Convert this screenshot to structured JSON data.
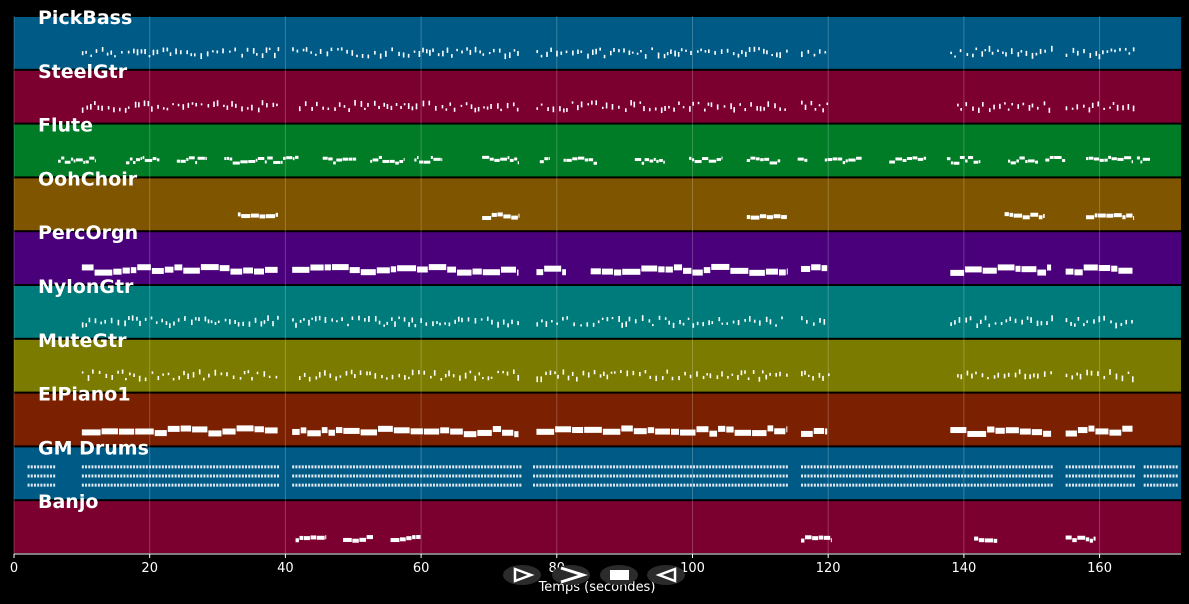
{
  "chart_data": {
    "type": "piano-roll",
    "xlabel": "Temps (secondes)",
    "xlim": [
      0,
      172
    ],
    "xticks": [
      0,
      20,
      40,
      60,
      80,
      100,
      120,
      140,
      160
    ],
    "grid": true,
    "background": "#000000",
    "note_color": "#ffffff",
    "tracks": [
      {
        "name": "PickBass",
        "color": "#005a86",
        "style": "sparse",
        "segments": [
          [
            10,
            39
          ],
          [
            41,
            74.5
          ],
          [
            77,
            114
          ],
          [
            116,
            120
          ],
          [
            138,
            153
          ],
          [
            155,
            165
          ]
        ]
      },
      {
        "name": "SteelGtr",
        "color": "#7b0030",
        "style": "sparse",
        "segments": [
          [
            10,
            39
          ],
          [
            42,
            74.5
          ],
          [
            77,
            114
          ],
          [
            116,
            120
          ],
          [
            139,
            153
          ],
          [
            155,
            165
          ]
        ]
      },
      {
        "name": "Flute",
        "color": "#007b26",
        "style": "phrases",
        "segments": [
          [
            6.5,
            12
          ],
          [
            16.5,
            21.5
          ],
          [
            24,
            28.5
          ],
          [
            31,
            42
          ],
          [
            45.5,
            50.5
          ],
          [
            52.5,
            57.5
          ],
          [
            59,
            63
          ],
          [
            69,
            74.5
          ],
          [
            77.5,
            79
          ],
          [
            81,
            86
          ],
          [
            91.5,
            96
          ],
          [
            99.5,
            104.5
          ],
          [
            108,
            113
          ],
          [
            115.5,
            117
          ],
          [
            119.5,
            125
          ],
          [
            129,
            134.5
          ],
          [
            137.5,
            142.5
          ],
          [
            146.5,
            151
          ],
          [
            152,
            155
          ],
          [
            158,
            165
          ],
          [
            165.5,
            167.5
          ]
        ]
      },
      {
        "name": "OohChoir",
        "color": "#7f5500",
        "style": "blocks",
        "segments": [
          [
            33,
            39
          ],
          [
            69,
            74.5
          ],
          [
            108,
            114
          ],
          [
            146,
            152
          ],
          [
            158,
            165
          ]
        ]
      },
      {
        "name": "PercOrgn",
        "color": "#4a007b",
        "style": "solid",
        "segments": [
          [
            10,
            39
          ],
          [
            41,
            74.5
          ],
          [
            77,
            81.5
          ],
          [
            85,
            114
          ],
          [
            116,
            120
          ],
          [
            138,
            153
          ],
          [
            155,
            165
          ]
        ]
      },
      {
        "name": "NylonGtr",
        "color": "#007b7b",
        "style": "sparse",
        "segments": [
          [
            10,
            39
          ],
          [
            41,
            74.5
          ],
          [
            77,
            114
          ],
          [
            116,
            120
          ],
          [
            138,
            153
          ],
          [
            155,
            165
          ]
        ]
      },
      {
        "name": "MuteGtr",
        "color": "#7b7b00",
        "style": "sparse",
        "segments": [
          [
            10,
            39
          ],
          [
            42,
            74.5
          ],
          [
            77,
            114
          ],
          [
            116,
            120
          ],
          [
            139,
            153
          ],
          [
            155,
            165
          ]
        ]
      },
      {
        "name": "ElPiano1",
        "color": "#7b2000",
        "style": "solid",
        "segments": [
          [
            10,
            39
          ],
          [
            41,
            74.5
          ],
          [
            77,
            114
          ],
          [
            116,
            120
          ],
          [
            138,
            153
          ],
          [
            155,
            165
          ]
        ]
      },
      {
        "name": "GM Drums",
        "color": "#005a86",
        "style": "drums",
        "segments": [
          [
            2,
            6
          ],
          [
            10,
            39
          ],
          [
            41,
            74.5
          ],
          [
            76.5,
            114
          ],
          [
            116,
            153
          ],
          [
            155,
            165
          ],
          [
            166.5,
            171.5
          ]
        ]
      },
      {
        "name": "Banjo",
        "color": "#7b0030",
        "style": "blocks",
        "segments": [
          [
            41.5,
            46
          ],
          [
            48.5,
            53
          ],
          [
            55.5,
            60
          ],
          [
            116,
            120.5
          ],
          [
            141.5,
            145
          ],
          [
            155,
            159.5
          ]
        ]
      }
    ]
  },
  "controls": {
    "play_icon": "play-icon",
    "forward_icon": "forward-icon",
    "stop_icon": "stop-icon",
    "rewind_icon": "rewind-icon"
  }
}
